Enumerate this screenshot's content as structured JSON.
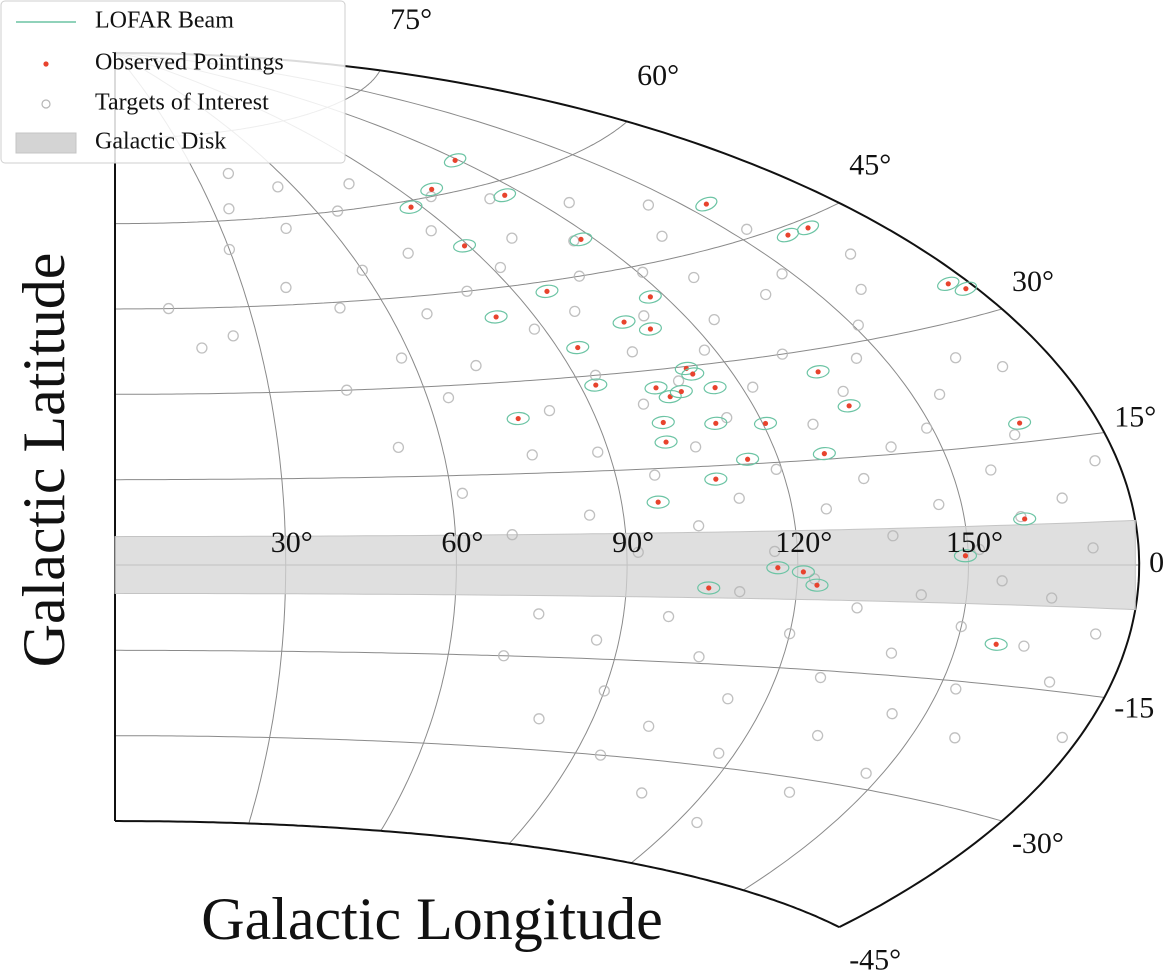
{
  "chart_data": {
    "type": "scatter",
    "projection": "aitoff",
    "xlabel": "Galactic Longitude",
    "ylabel": "Galactic Latitude",
    "xlim": [
      0,
      180
    ],
    "ylim": [
      -45,
      90
    ],
    "xticks": [
      {
        "value": 30,
        "label": "30°"
      },
      {
        "value": 60,
        "label": "60°"
      },
      {
        "value": 90,
        "label": "90°"
      },
      {
        "value": 120,
        "label": "120°"
      },
      {
        "value": 150,
        "label": "150°"
      }
    ],
    "yticks": [
      {
        "value": 75,
        "label": "75°"
      },
      {
        "value": 60,
        "label": "60°"
      },
      {
        "value": 45,
        "label": "45°"
      },
      {
        "value": 30,
        "label": "30°"
      },
      {
        "value": 15,
        "label": "15°"
      },
      0,
      -15,
      {
        "value": -30,
        "label": "-30°"
      },
      {
        "value": -45,
        "label": "-45°"
      }
    ],
    "grid": true,
    "legend": "upper left",
    "beam": {
      "name": "LOFAR Beam",
      "color": "#6cc4a4"
    },
    "galactic_disk": {
      "name": "Galactic Disk",
      "color": "#d4d4d4",
      "lat_range": [
        -5,
        5
      ]
    },
    "series": [
      {
        "name": "Observed Pointings",
        "color": "#e8432d",
        "x": [
          119,
          99,
          87,
          115,
          89,
          117,
          155,
          160,
          166,
          176,
          178,
          97,
          82,
          117,
          107,
          111,
          94,
          112,
          112.5,
          93,
          104,
          105.7,
          108.3,
          115,
          136,
          137.4,
          75.6,
          102,
          111.5,
          120.5,
          101,
          166,
          114.5,
          128.6,
          107.7,
          96.5,
          160.6,
          149.5,
          116.5,
          121,
          123.5,
          104.5,
          157
        ],
        "values": [
          64,
          61,
          59,
          58,
          52,
          50,
          50,
          44,
          44,
          34,
          33,
          43.5,
          40.5,
          40.5,
          37.5,
          36,
          34.5,
          29.7,
          28.8,
          28.5,
          27.3,
          25.8,
          26.4,
          26.5,
          27,
          22,
          24,
          22,
          21.3,
          20.7,
          19,
          17.3,
          15.7,
          15.8,
          13,
          9.8,
          5.7,
          1.2,
          -0.4,
          -1,
          -2.9,
          -3.5,
          -10
        ]
      },
      {
        "name": "Targets of Interest",
        "color": "#b5b5b5",
        "x": [
          12,
          18,
          25,
          30,
          35,
          40,
          42,
          45,
          48,
          50,
          52,
          55,
          58,
          60,
          62,
          64,
          66,
          68,
          70,
          70,
          72,
          74,
          75,
          76,
          78,
          80,
          80,
          82,
          84,
          85,
          86,
          88,
          88,
          90,
          92,
          92,
          94,
          95,
          96,
          97,
          98,
          99,
          100,
          101,
          102,
          103,
          104,
          105,
          106,
          107,
          108,
          109,
          110,
          110,
          111,
          112,
          113,
          114,
          115,
          116,
          117,
          118,
          119,
          120,
          121,
          122,
          123,
          124,
          125,
          126,
          127,
          128,
          129,
          130,
          131,
          132,
          133,
          134,
          135,
          136,
          137,
          138,
          139,
          140,
          141,
          142,
          143,
          144,
          145,
          146,
          147,
          148,
          149,
          150,
          151,
          152,
          153,
          154,
          155,
          156,
          157,
          158,
          159,
          160,
          162,
          163,
          164,
          165,
          166,
          168,
          169,
          170,
          172,
          174,
          176,
          177
        ],
        "values": [
          45,
          38,
          40,
          55,
          62,
          48,
          68,
          30,
          58,
          44,
          20,
          65,
          35,
          50,
          12,
          28,
          60,
          42,
          5,
          -15,
          33,
          52,
          -8,
          18,
          64,
          45,
          -25,
          25,
          8,
          55,
          -12,
          38,
          18,
          -20,
          48,
          2,
          30,
          -30,
          60,
          14,
          -8,
          40,
          25,
          -25,
          52,
          6,
          33,
          -14,
          18,
          45,
          -35,
          28,
          -4,
          58,
          10,
          38,
          -20,
          22,
          50,
          2,
          -28,
          32,
          14,
          -10,
          44,
          26,
          -2,
          -38,
          36,
          8,
          55,
          -16,
          20,
          42,
          -6,
          30,
          -24,
          12,
          48,
          -32,
          4,
          24,
          -12,
          38,
          16,
          -4,
          52,
          -20,
          28,
          8,
          -28,
          40,
          18,
          -8,
          32,
          2,
          -16,
          46,
          22,
          -2,
          12,
          -22,
          36,
          6,
          -10,
          26,
          16,
          -4,
          40,
          8,
          -14,
          24,
          2,
          -8,
          12,
          -20
        ]
      }
    ]
  }
}
